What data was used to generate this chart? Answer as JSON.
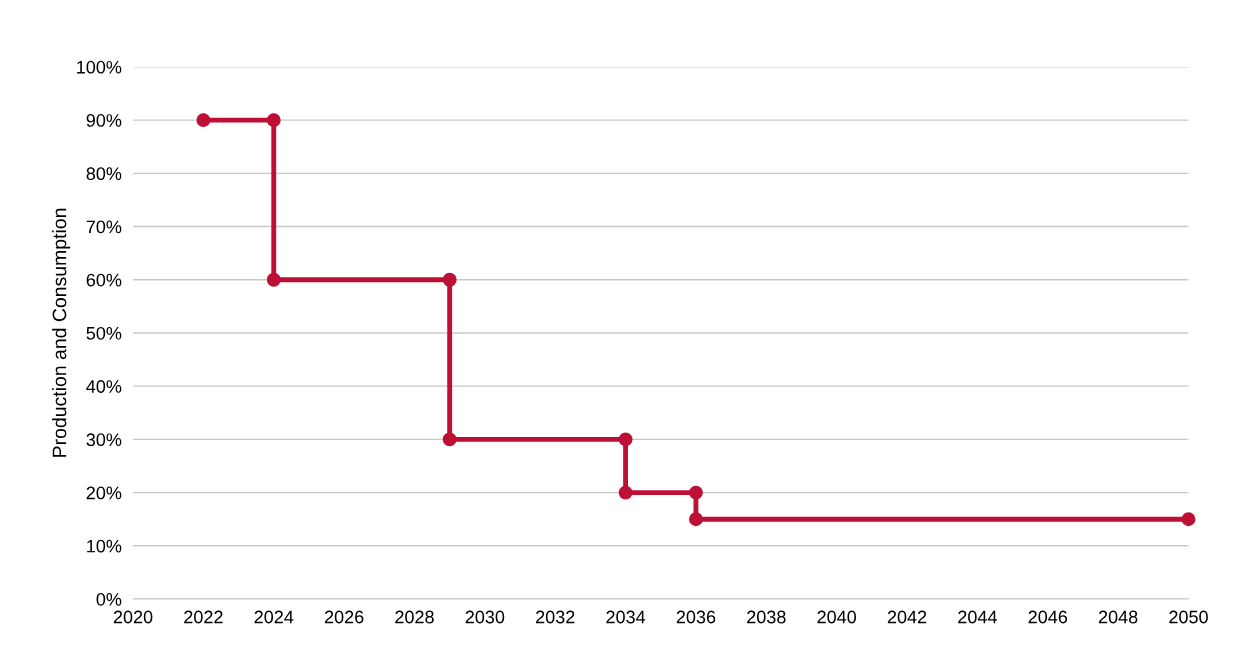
{
  "chart_data": {
    "type": "line",
    "ylabel": "Production and Consumption",
    "x": [
      2022,
      2024,
      2024,
      2029,
      2029,
      2034,
      2034,
      2036,
      2036,
      2050
    ],
    "series": [
      {
        "color": "#be0f34",
        "values": [
          90,
          90,
          60,
          60,
          30,
          30,
          20,
          20,
          15,
          15
        ]
      }
    ],
    "xlim": [
      2020,
      2050
    ],
    "xticks": [
      2020,
      2022,
      2024,
      2026,
      2028,
      2030,
      2032,
      2034,
      2036,
      2038,
      2040,
      2042,
      2044,
      2046,
      2048,
      2050
    ],
    "ylim": [
      0,
      100
    ],
    "yticks": [
      {
        "value": 0,
        "label": "0%"
      },
      {
        "value": 10,
        "label": "10%"
      },
      {
        "value": 20,
        "label": "20%"
      },
      {
        "value": 30,
        "label": "30%"
      },
      {
        "value": 40,
        "label": "40%"
      },
      {
        "value": 50,
        "label": "50%"
      },
      {
        "value": 60,
        "label": "60%"
      },
      {
        "value": 70,
        "label": "70%"
      },
      {
        "value": 80,
        "label": "80%"
      },
      {
        "value": 90,
        "label": "90%"
      },
      {
        "value": 100,
        "label": "100%"
      }
    ],
    "grid": "y",
    "marker": "circle",
    "line_style": "solid",
    "legend": false
  }
}
